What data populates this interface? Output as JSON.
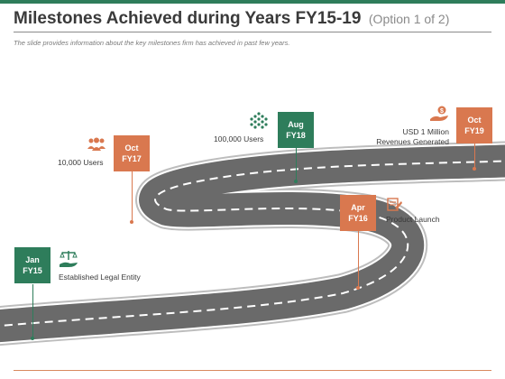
{
  "header": {
    "title": "Milestones Achieved during Years FY15-19",
    "option": "(Option 1 of 2)",
    "subtitle": "The slide provides information about the key milestones firm has achieved in past few years."
  },
  "milestones": [
    {
      "month": "Jan",
      "year": "FY15",
      "text": "Established Legal Entity",
      "icon": "scales-hand-icon",
      "color": "#2e7d5b"
    },
    {
      "month": "Oct",
      "year": "FY17",
      "text": "10,000 Users",
      "icon": "users-group-icon",
      "color": "#d9784f"
    },
    {
      "month": "Aug",
      "year": "FY18",
      "text": "100,000 Users",
      "icon": "crowd-icon",
      "color": "#2e7d5b"
    },
    {
      "month": "Apr",
      "year": "FY16",
      "text": "Product Launch",
      "icon": "launch-checklist-icon",
      "color": "#d9784f"
    },
    {
      "month": "Oct",
      "year": "FY19",
      "text": "USD 1 Million Revenues Generated",
      "icon": "money-hand-icon",
      "color": "#d9784f"
    }
  ]
}
